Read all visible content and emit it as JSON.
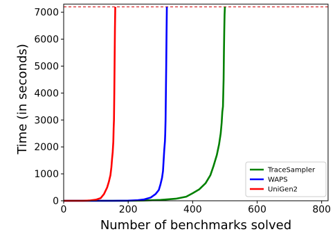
{
  "chart_data": {
    "type": "line",
    "title": "",
    "xlabel": "Number of benchmarks solved",
    "ylabel": "Time (in seconds)",
    "xlim": [
      0,
      820
    ],
    "ylim": [
      0,
      7300
    ],
    "xticks": [
      0,
      200,
      400,
      600,
      800
    ],
    "yticks": [
      0,
      1000,
      2000,
      3000,
      4000,
      5000,
      6000,
      7000
    ],
    "timeout_line": {
      "y": 7200,
      "color": "#d62728",
      "style": "dashed"
    },
    "grid": false,
    "legend": {
      "placement": "lower-right"
    },
    "series": [
      {
        "name": "TraceSampler",
        "color": "#008000",
        "x": [
          0,
          200,
          250,
          300,
          350,
          380,
          400,
          420,
          440,
          455,
          465,
          475,
          482,
          487,
          490,
          492,
          494,
          496,
          497,
          498,
          499,
          500
        ],
        "y": [
          0,
          0,
          10,
          30,
          80,
          150,
          280,
          420,
          650,
          950,
          1300,
          1700,
          2100,
          2500,
          2900,
          3300,
          3500,
          4500,
          5500,
          6300,
          6900,
          7200
        ]
      },
      {
        "name": "WAPS",
        "color": "#0000ff",
        "x": [
          0,
          150,
          200,
          230,
          250,
          270,
          285,
          295,
          300,
          305,
          308,
          310,
          312,
          314,
          315,
          316,
          317,
          318,
          319,
          320
        ],
        "y": [
          0,
          0,
          5,
          20,
          50,
          120,
          250,
          400,
          600,
          850,
          1100,
          1500,
          1900,
          2200,
          2500,
          3000,
          4000,
          5000,
          6200,
          7200
        ]
      },
      {
        "name": "UniGen2",
        "color": "#ff0000",
        "x": [
          0,
          60,
          80,
          100,
          115,
          125,
          135,
          140,
          145,
          148,
          150,
          152,
          154,
          155,
          156,
          157,
          158,
          159,
          160
        ],
        "y": [
          0,
          0,
          10,
          40,
          100,
          250,
          500,
          700,
          950,
          1250,
          1550,
          1800,
          2200,
          2700,
          3000,
          4000,
          5200,
          6400,
          7200
        ]
      }
    ]
  }
}
